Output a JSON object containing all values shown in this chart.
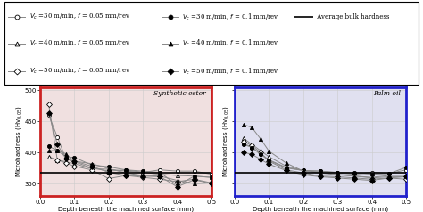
{
  "title_left": "Synthetic ester",
  "title_right": "Palm oil",
  "xlabel": "Depth beneath the machined surface (mm)",
  "ylabel": "Microhardness (Hv$_{0.05}$)",
  "ylim": [
    330,
    505
  ],
  "yticks": [
    350,
    400,
    450,
    500
  ],
  "xlim": [
    0,
    0.5
  ],
  "xticks": [
    0,
    0.1,
    0.2,
    0.3,
    0.4,
    0.5
  ],
  "avg_bulk_hardness": 368,
  "background_left": "#f0e0e0",
  "background_right": "#e0e0f0",
  "border_left": "#cc2222",
  "border_right": "#2222cc",
  "depth_points": [
    0.025,
    0.05,
    0.075,
    0.1,
    0.15,
    0.2,
    0.25,
    0.3,
    0.35,
    0.4,
    0.45,
    0.5
  ],
  "synth_vc30_f005": [
    460,
    425,
    390,
    385,
    375,
    370,
    372,
    368,
    372,
    370,
    370,
    365
  ],
  "synth_vc40_f005": [
    393,
    388,
    385,
    382,
    374,
    373,
    370,
    368,
    365,
    363,
    362,
    360
  ],
  "synth_vc50_f005": [
    477,
    388,
    383,
    378,
    372,
    358,
    363,
    360,
    357,
    353,
    357,
    351
  ],
  "synth_vc30_f01": [
    410,
    403,
    393,
    392,
    380,
    377,
    372,
    370,
    368,
    347,
    362,
    360
  ],
  "synth_vc40_f01": [
    403,
    403,
    398,
    386,
    382,
    374,
    367,
    363,
    362,
    355,
    350,
    351
  ],
  "synth_vc50_f01": [
    463,
    413,
    390,
    386,
    378,
    368,
    363,
    362,
    361,
    345,
    356,
    350
  ],
  "palm_vc30_f005": [
    415,
    408,
    398,
    388,
    376,
    371,
    370,
    367,
    365,
    368,
    366,
    372
  ],
  "palm_vc40_f005": [
    423,
    413,
    403,
    393,
    378,
    371,
    368,
    365,
    362,
    359,
    361,
    361
  ],
  "palm_vc50_f005": [
    418,
    411,
    400,
    386,
    372,
    367,
    362,
    361,
    359,
    357,
    359,
    357
  ],
  "palm_vc30_f01": [
    413,
    408,
    397,
    387,
    375,
    371,
    370,
    368,
    367,
    365,
    366,
    376
  ],
  "palm_vc40_f01": [
    445,
    440,
    422,
    402,
    383,
    370,
    367,
    364,
    362,
    360,
    363,
    363
  ],
  "palm_vc50_f01": [
    400,
    397,
    389,
    381,
    371,
    364,
    361,
    359,
    357,
    355,
    359,
    361
  ],
  "lw": 0.7,
  "ms": 3.0
}
